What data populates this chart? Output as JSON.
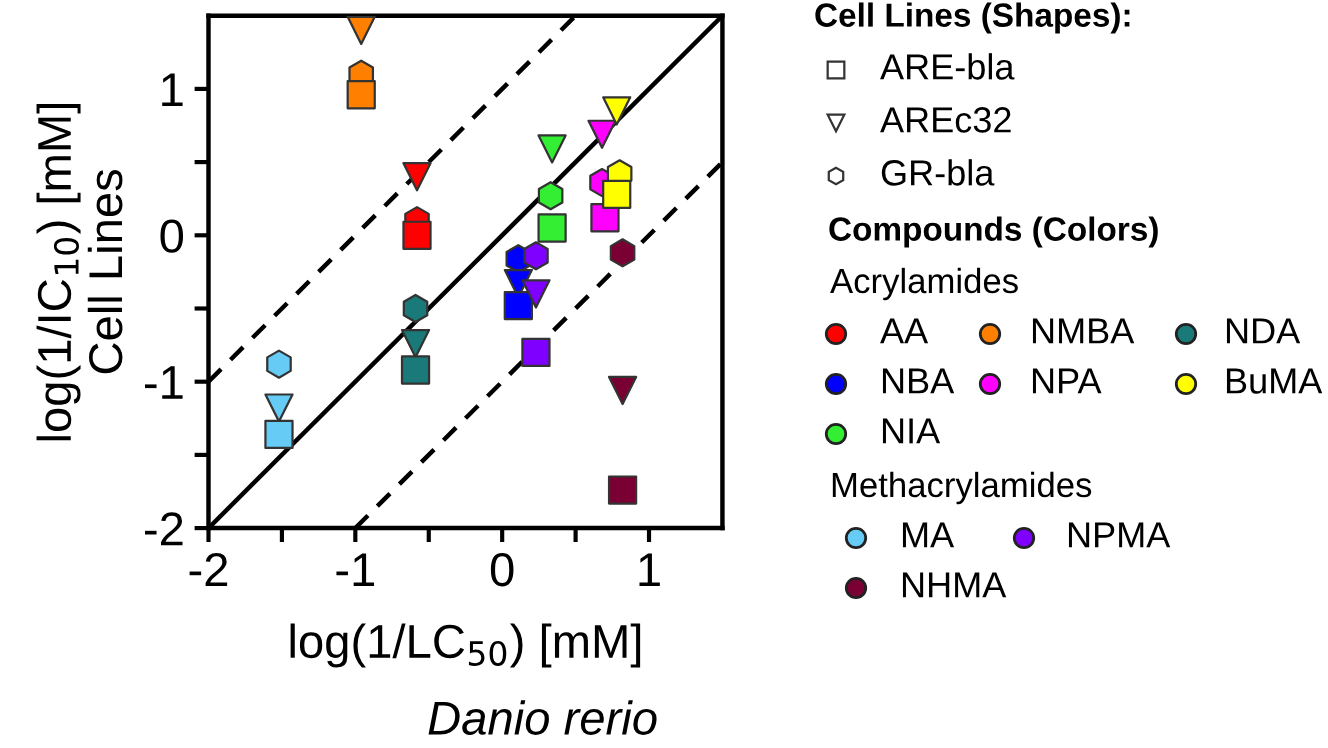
{
  "chart_data": {
    "type": "scatter",
    "xlabel": "log(1/LC$_{50}$) [mM]",
    "ylabel": "log(1/IC$_{10}$) [mM]\nCell Lines",
    "xlim": [
      -2,
      1.5
    ],
    "ylim": [
      -2,
      1.5
    ],
    "xticks": [
      -2,
      {
        "value": -1.5,
        "label": null
      },
      -1,
      {
        "value": -0.5,
        "label": null
      },
      0,
      {
        "value": 0.5,
        "label": null
      },
      1
    ],
    "yticks": [
      -2,
      {
        "value": -1.5,
        "label": null
      },
      -1,
      {
        "value": -0.5,
        "label": null
      },
      0,
      {
        "value": 0.5,
        "label": null
      },
      1
    ],
    "legend": "right",
    "legend_title": [
      "Cell Lines (Shapes):",
      "Compounds (Colors)"
    ],
    "annotations": [
      "Danio rerio",
      "Acrylamides",
      "Methacrylamides"
    ],
    "series": [
      {
        "type": "line",
        "line_style": "solid",
        "color": "#000000",
        "x": [
          -2,
          1.5
        ],
        "values": [
          -2,
          1.5
        ]
      },
      {
        "type": "line",
        "line_style": "dashed",
        "color": "#000000",
        "x": [
          -2,
          0.5
        ],
        "values": [
          -1,
          1.5
        ]
      },
      {
        "type": "line",
        "line_style": "dashed",
        "color": "#000000",
        "x": [
          -1,
          1.5
        ],
        "values": [
          -2,
          0.5
        ]
      },
      {
        "name": "ARE-bla",
        "marker": "square",
        "color": "#ffffff"
      },
      {
        "name": "AREc32",
        "marker": "triangle_down",
        "color": "#ffffff"
      },
      {
        "name": "GR-bla",
        "marker": "hexagon",
        "color": "#ffffff"
      },
      {
        "name": "AA",
        "color": "#ff0000",
        "marker": [
          "triangle_down",
          "hexagon",
          "square"
        ],
        "x": [
          -0.58,
          -0.58,
          -0.58
        ],
        "values": [
          0.4,
          0.1,
          0.0
        ]
      },
      {
        "name": "NMBA",
        "color": "#ff8000",
        "marker": [
          "triangle_down",
          "hexagon",
          "square"
        ],
        "x": [
          -0.96,
          -0.96,
          -0.96
        ],
        "values": [
          1.4,
          1.1,
          0.96
        ]
      },
      {
        "name": "NDA",
        "color": "#1a7a7a",
        "marker": [
          "hexagon",
          "triangle_down",
          "square"
        ],
        "x": [
          -0.59,
          -0.59,
          -0.59
        ],
        "values": [
          -0.5,
          -0.74,
          -0.92
        ]
      },
      {
        "name": "NBA",
        "color": "#0000ff",
        "marker": [
          "hexagon",
          "triangle_down",
          "square"
        ],
        "x": [
          0.11,
          0.11,
          0.11
        ],
        "values": [
          -0.16,
          -0.33,
          -0.48
        ]
      },
      {
        "name": "NPA",
        "color": "#ff00ff",
        "marker": [
          "triangle_down",
          "hexagon",
          "square"
        ],
        "x": [
          0.68,
          0.68,
          0.7
        ],
        "values": [
          0.69,
          0.36,
          0.12
        ]
      },
      {
        "name": "BuMA",
        "color": "#ffff00",
        "marker": [
          "triangle_down",
          "hexagon",
          "square"
        ],
        "x": [
          0.78,
          0.8,
          0.78
        ],
        "values": [
          0.85,
          0.42,
          0.28
        ]
      },
      {
        "name": "NIA",
        "color": "#33ee33",
        "marker": [
          "triangle_down",
          "hexagon",
          "square"
        ],
        "x": [
          0.34,
          0.33,
          0.34
        ],
        "values": [
          0.59,
          0.27,
          0.05
        ]
      },
      {
        "name": "MA",
        "color": "#66ccf5",
        "marker": [
          "hexagon",
          "triangle_down",
          "square"
        ],
        "x": [
          -1.52,
          -1.52,
          -1.52
        ],
        "values": [
          -0.88,
          -1.18,
          -1.36
        ]
      },
      {
        "name": "NPMA",
        "color": "#8000ff",
        "marker": [
          "hexagon",
          "triangle_down",
          "square"
        ],
        "x": [
          0.23,
          0.23,
          0.23
        ],
        "values": [
          -0.14,
          -0.4,
          -0.8
        ]
      },
      {
        "name": "NHMA",
        "color": "#7a0033",
        "marker": [
          "hexagon",
          "triangle_down",
          "square"
        ],
        "x": [
          0.82,
          0.82,
          0.82
        ],
        "values": [
          -0.12,
          -1.06,
          -1.74
        ]
      }
    ]
  }
}
